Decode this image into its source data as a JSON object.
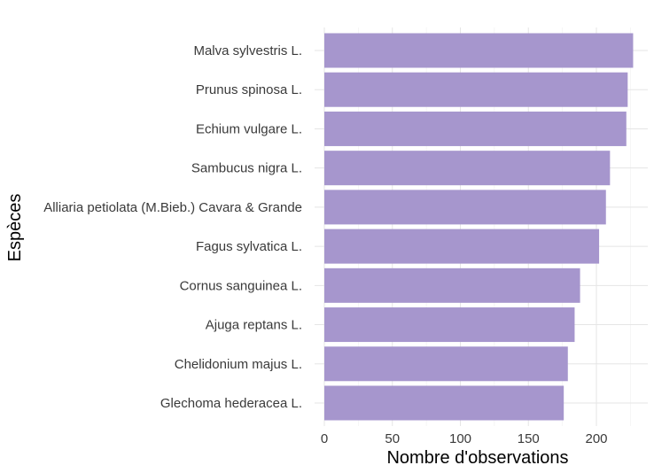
{
  "chart_data": {
    "type": "bar",
    "orientation": "horizontal",
    "title": "",
    "xlabel": "Nombre d'observations",
    "ylabel": "Espèces",
    "categories": [
      "Malva sylvestris L.",
      "Prunus spinosa L.",
      "Echium vulgare L.",
      "Sambucus nigra L.",
      "Alliaria petiolata (M.Bieb.) Cavara & Grande",
      "Fagus sylvatica L.",
      "Cornus sanguinea L.",
      "Ajuga reptans L.",
      "Chelidonium majus L.",
      "Glechoma hederacea L."
    ],
    "values": [
      227,
      223,
      222,
      210,
      207,
      202,
      188,
      184,
      179,
      176
    ],
    "xlim": [
      0,
      240
    ],
    "xticks": [
      0,
      50,
      100,
      150,
      200
    ],
    "bar_color": "#a696cd",
    "grid": true,
    "legend": "none"
  }
}
